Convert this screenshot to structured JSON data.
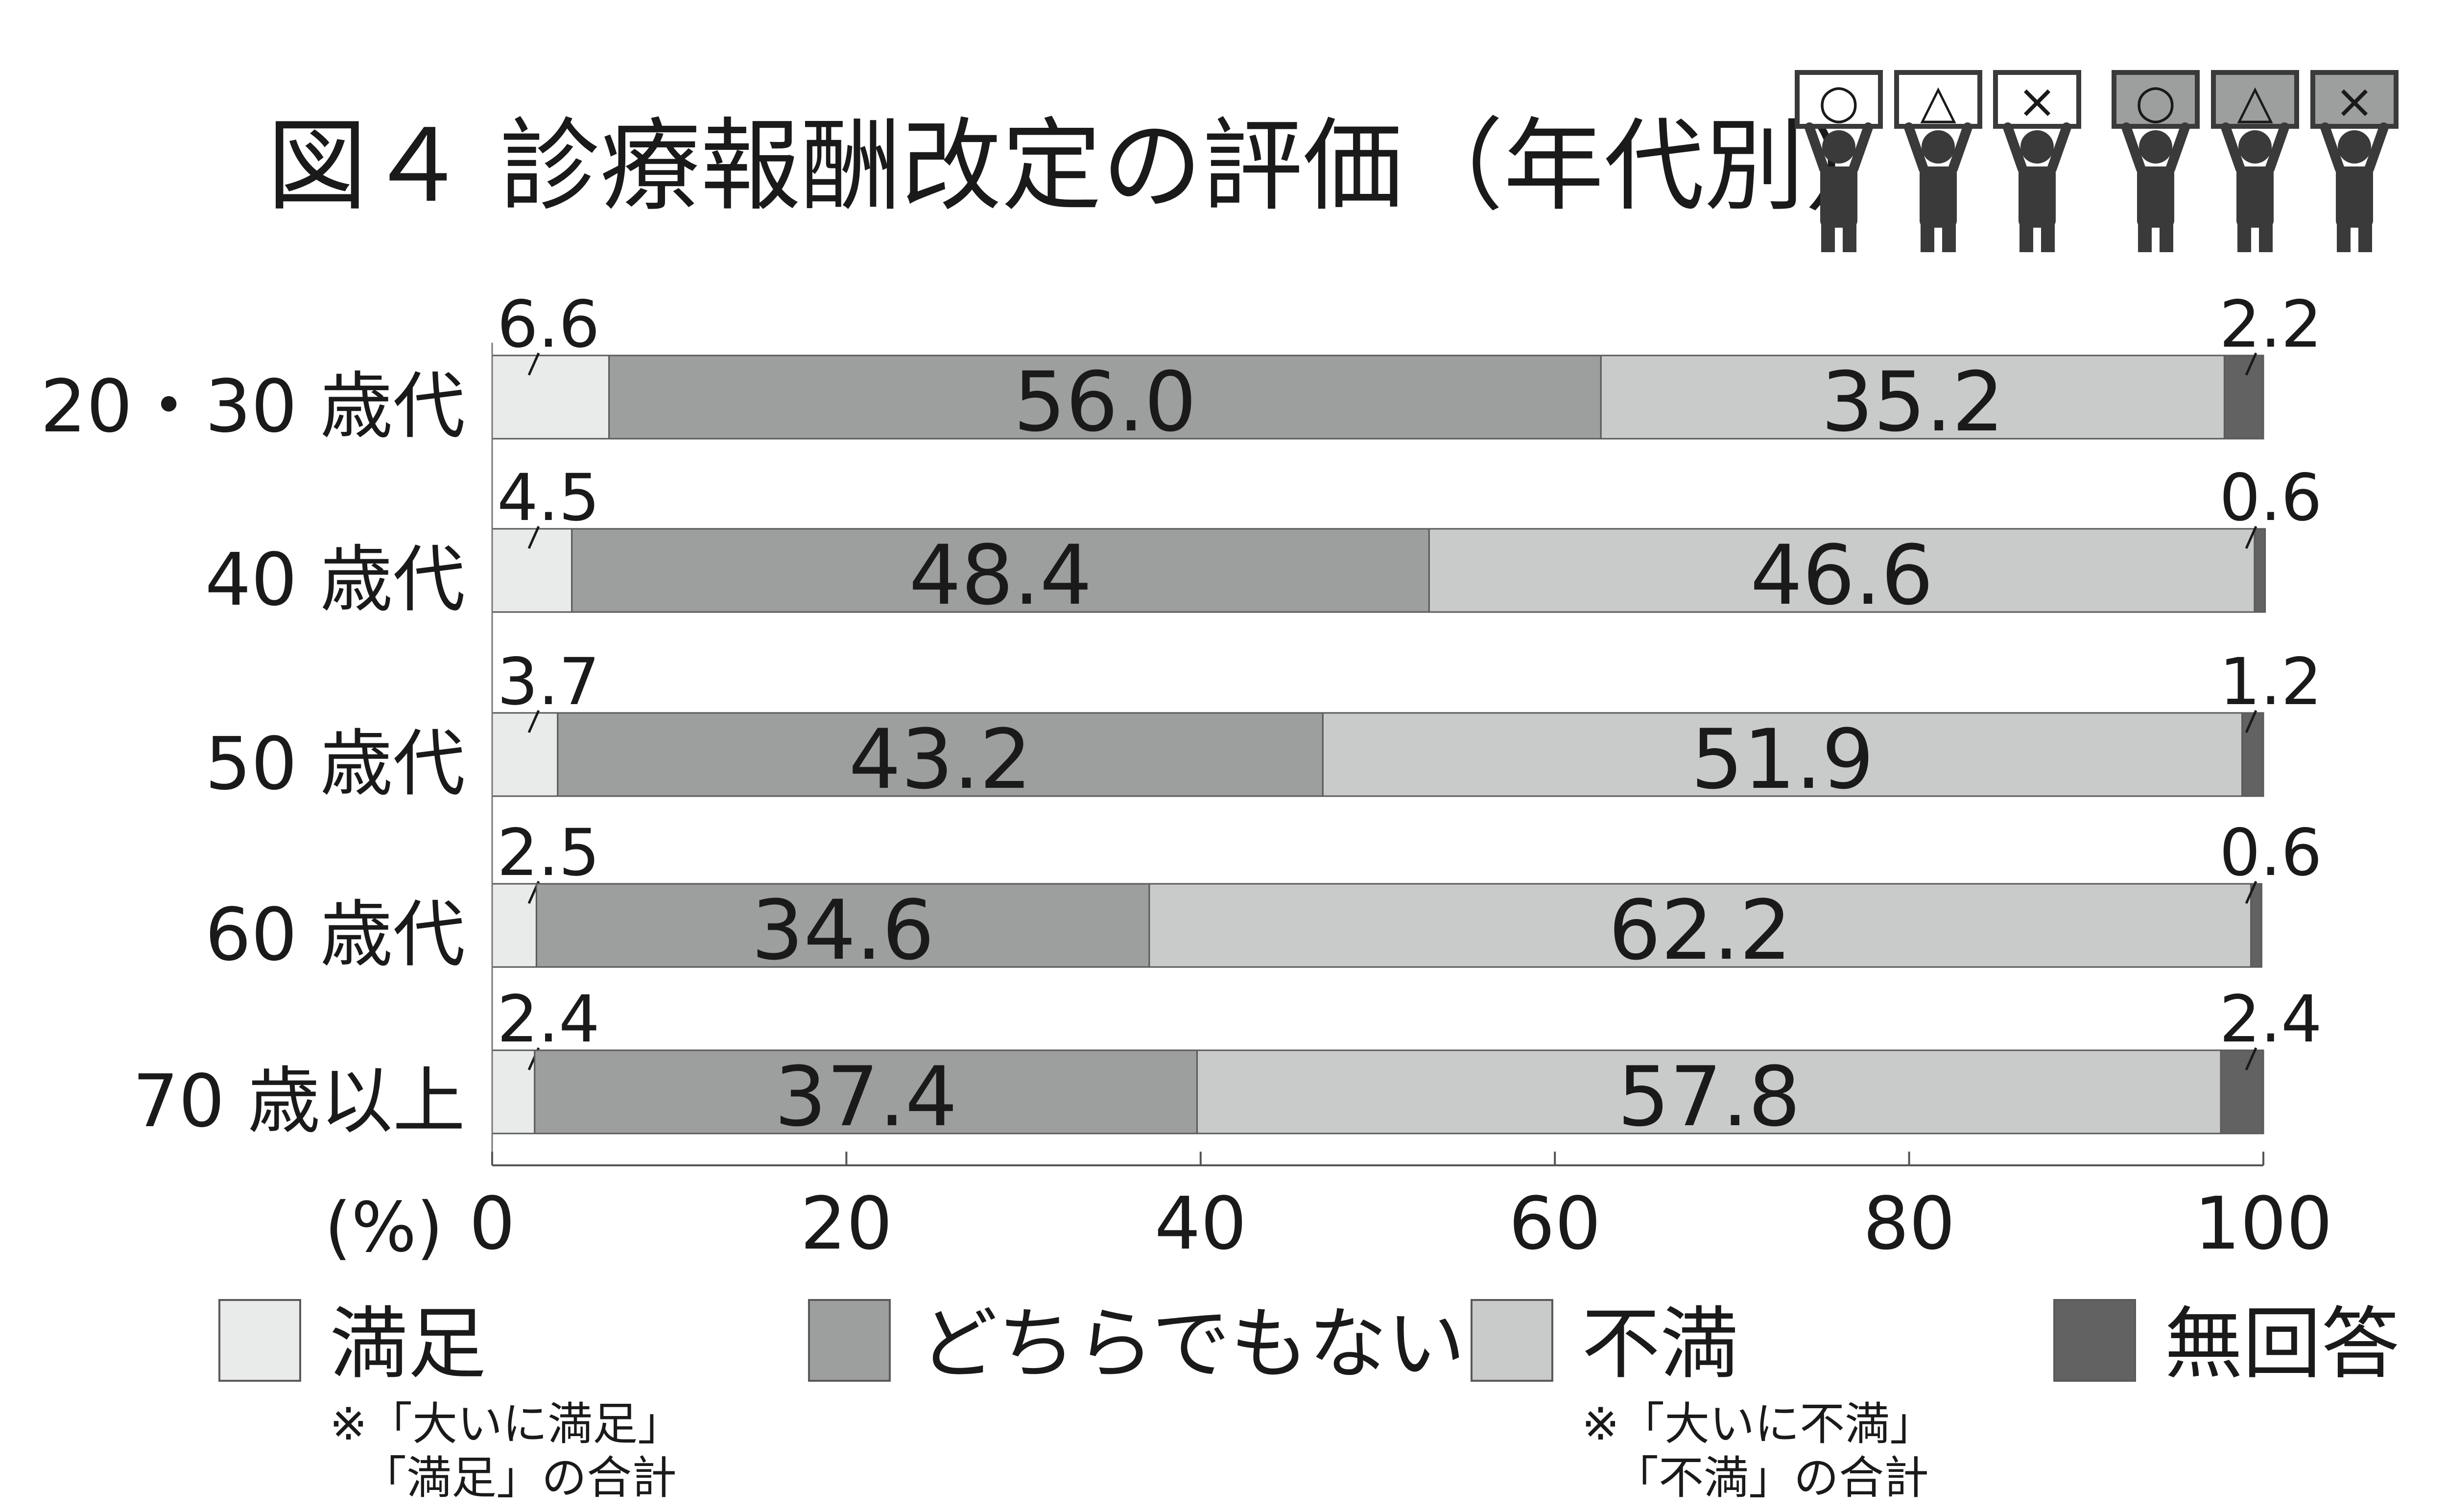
{
  "chart_data": {
    "type": "bar",
    "orientation": "horizontal",
    "stacked": true,
    "title": "図４ 診療報酬改定の評価（年代別）",
    "xlabel": "(%)",
    "xlim": [
      0,
      100
    ],
    "xticks": [
      "0",
      "20",
      "40",
      "60",
      "80",
      "100"
    ],
    "categories": [
      "20・30 歳代",
      "40 歳代",
      "50 歳代",
      "60 歳代",
      "70 歳以上"
    ],
    "series": [
      {
        "name": "満足",
        "color": "#e9ebeb",
        "labels": [
          "6.6",
          "4.5",
          "3.7",
          "2.5",
          "2.4"
        ],
        "values": [
          6.6,
          4.5,
          3.7,
          2.5,
          2.4
        ]
      },
      {
        "name": "どちらでもない",
        "color": "#9d9e9e",
        "labels": [
          "56.0",
          "48.4",
          "43.2",
          "34.6",
          "37.4"
        ],
        "values": [
          56.0,
          48.4,
          43.2,
          34.6,
          37.4
        ]
      },
      {
        "name": "不満",
        "color": "#c9caca",
        "labels": [
          "35.2",
          "46.6",
          "51.9",
          "62.2",
          "57.8"
        ],
        "values": [
          35.2,
          46.6,
          51.9,
          62.2,
          57.8
        ]
      },
      {
        "name": "無回答",
        "color": "#626262",
        "labels": [
          "2.2",
          "0.6",
          "1.2",
          "0.6",
          "2.4"
        ],
        "values": [
          2.2,
          0.6,
          1.2,
          0.6,
          2.4
        ]
      }
    ],
    "legend_notes": [
      "※「大いに満足」\n「満足」の合計",
      "",
      "※「大いに不満」\n「不満」の合計",
      ""
    ],
    "legend_position": "bottom",
    "grid": false,
    "icons": [
      {
        "symbol": "○",
        "style": "outline"
      },
      {
        "symbol": "△",
        "style": "outline"
      },
      {
        "symbol": "×",
        "style": "outline"
      },
      {
        "symbol": "○",
        "style": "filled"
      },
      {
        "symbol": "△",
        "style": "filled"
      },
      {
        "symbol": "×",
        "style": "filled"
      }
    ]
  }
}
